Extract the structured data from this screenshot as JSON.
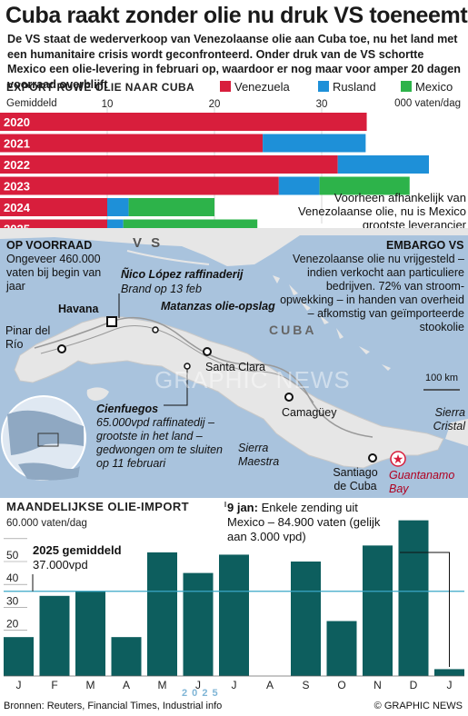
{
  "header": {
    "title": "Cuba raakt zonder olie nu druk VS toeneemt",
    "subtitle": "De VS staat de wederverkoop van Venezolaanse olie aan Cuba toe, nu het land met een humanitaire crisis wordt geconfronteerd. Onder druk van de VS schortte  Mexico een olie-levering in februari op, waardoor er nog maar voor amper 20 dagen voorraad overblijft"
  },
  "export_section": {
    "heading": "EXPORT RUWE OLIE NAAR CUBA",
    "avg_label": "Gemiddeld",
    "unit": "000 vaten/dag",
    "note": "Voorheen afhankelijk van Venezolaanse olie, nu is Mexico grootste leverancier"
  },
  "map": {
    "vs_label": "V S",
    "cuba_label": "CUBA",
    "on_stock_heading": "OP VOORRAAD",
    "on_stock_text": "Ongeveer 460.000 vaten bij begin van jaar",
    "embargo_heading": "EMBARGO VS",
    "embargo_text": "Venezolaanse olie nu vrijgesteld – indien verkocht aan particuliere bedrijven. 72% van stroom-opwekking – in handen van overheid – afkomstig van geïmporteerde stookolie",
    "refinery_name": "Ñico López raffinaderij",
    "refinery_note": "Brand op 13 feb",
    "matanzas": "Matanzas olie-opslag",
    "havana": "Havana",
    "pinar": "Pinar del Río",
    "santa_clara": "Santa Clara",
    "camaguey": "Camagüey",
    "sierra_maestra": "Sierra Maestra",
    "sierra_cristal": "Sierra Cristal",
    "santiago": "Santiago de Cuba",
    "guantanamo": "Guantanamo Bay",
    "cienfuegos_name": "Cienfuegos",
    "cienfuegos_text": "65.000vpd raffinatedij – grootste in het land – gedwongen om te sluiten op 11 februari",
    "scale": "100 km",
    "watermark": "GRAPHIC NEWS"
  },
  "monthly": {
    "heading": "MAANDELIJKSE OLIE-IMPORT",
    "unit": "60.000 vaten/dag",
    "avg_title": "2025 gemiddeld",
    "avg_value": "37.000vpd",
    "jan_note_bold": "9 jan:",
    "jan_note": " Enkele zending uit Mexico – 84.900 vaten (gelijk aan 3.000 vpd)",
    "year": "2 0 2 5"
  },
  "footer": {
    "sources": "Bronnen: Reuters, Financial Times, Industrial info",
    "credit": "© GRAPHIC NEWS"
  },
  "colors": {
    "venezuela": "#d81e3c",
    "rusland": "#1e90d8",
    "mexico": "#2db34a",
    "teal": "#0d5e5e",
    "sea": "#a9c3dd",
    "land": "#e6e6e6"
  },
  "chart_data": [
    {
      "type": "bar",
      "orientation": "horizontal",
      "stacked": true,
      "title": "EXPORT RUWE OLIE NAAR CUBA",
      "xlabel": "Gemiddeld",
      "unit": "000 vaten/dag",
      "xlim": [
        0,
        40
      ],
      "xticks": [
        10,
        20,
        30
      ],
      "categories": [
        "2020",
        "2021",
        "2022",
        "2023",
        "2024",
        "2025"
      ],
      "series": [
        {
          "name": "Venezuela",
          "values": [
            34.2,
            24.5,
            31.5,
            26.0,
            10.0,
            10.0
          ]
        },
        {
          "name": "Rusland",
          "values": [
            0,
            9.6,
            8.5,
            3.8,
            2.0,
            1.5
          ]
        },
        {
          "name": "Mexico",
          "values": [
            0,
            0,
            0,
            8.4,
            8.0,
            12.5
          ]
        }
      ]
    },
    {
      "type": "bar",
      "title": "MAANDELIJKSE OLIE-IMPORT",
      "ylabel": "60.000 vaten/dag",
      "ylim": [
        0,
        68
      ],
      "yticks": [
        20,
        30,
        40,
        50,
        60
      ],
      "categories": [
        "J",
        "F",
        "M",
        "A",
        "M",
        "J",
        "J",
        "A",
        "S",
        "O",
        "N",
        "D",
        "J"
      ],
      "values": [
        17,
        35,
        37,
        17,
        54,
        45,
        53,
        0,
        50,
        24,
        57,
        68,
        3
      ],
      "average": 37
    }
  ]
}
